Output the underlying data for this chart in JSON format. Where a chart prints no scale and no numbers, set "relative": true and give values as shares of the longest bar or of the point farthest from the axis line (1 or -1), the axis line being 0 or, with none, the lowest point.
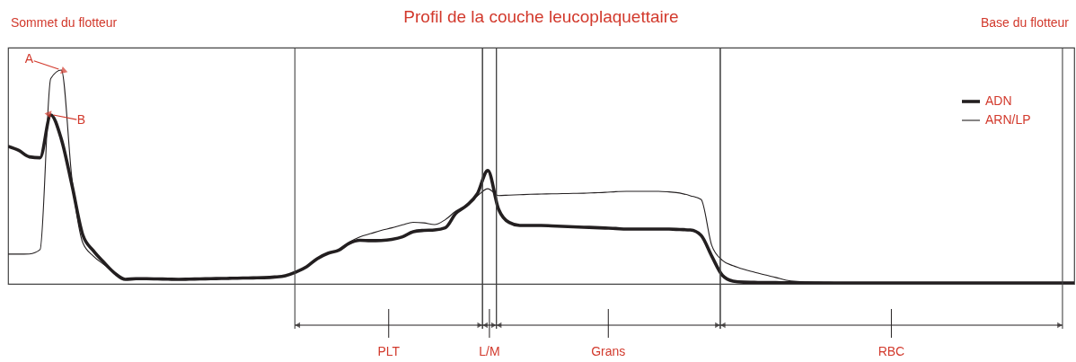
{
  "chart_data": {
    "type": "line",
    "title": "Profil de la couche leucoplaquettaire",
    "relative": true,
    "legend": "top right",
    "categories": [
      null,
      null,
      null,
      null,
      null,
      null,
      null,
      null,
      null,
      null,
      null,
      null,
      null,
      null,
      null,
      null,
      null,
      null,
      null,
      null,
      null,
      null,
      null,
      null,
      null,
      null,
      null,
      null,
      null,
      null,
      null,
      null,
      null,
      null,
      null,
      null,
      null,
      null,
      null,
      null,
      null,
      null,
      null,
      null,
      null,
      null,
      null,
      null,
      null,
      null,
      null,
      null,
      null,
      null,
      null,
      null,
      null,
      null,
      null,
      null,
      null,
      null,
      null,
      null,
      null,
      null,
      null,
      null,
      null,
      null,
      null,
      null,
      null,
      null,
      null,
      null,
      null,
      null,
      null,
      null,
      null,
      null,
      null,
      null,
      null,
      null,
      null,
      null,
      null,
      null,
      null,
      null,
      null,
      null,
      null,
      null,
      null,
      null,
      null,
      null,
      null
    ],
    "series": [
      {
        "name": "ADN",
        "color": "#231f20",
        "values": [
          0.643,
          0.624,
          0.594,
          0.59,
          0.79,
          0.676,
          0.46,
          0.23,
          0.155,
          0.1,
          0.05,
          0.021,
          0.024,
          0.024,
          0.023,
          0.022,
          0.021,
          0.022,
          0.023,
          0.024,
          0.025,
          0.026,
          0.027,
          0.028,
          0.029,
          0.032,
          0.038,
          0.055,
          0.08,
          0.118,
          0.143,
          0.157,
          0.19,
          0.204,
          0.202,
          0.203,
          0.208,
          0.22,
          0.244,
          0.25,
          0.252,
          0.262,
          0.33,
          0.366,
          0.42,
          0.53,
          0.35,
          0.287,
          0.273,
          0.273,
          0.273,
          0.271,
          0.269,
          0.267,
          0.265,
          0.263,
          0.261,
          0.259,
          0.256,
          0.256,
          0.256,
          0.256,
          0.256,
          0.254,
          0.252,
          0.227,
          0.13,
          0.04,
          0.013,
          0.008,
          0.007,
          0.006,
          0.006,
          0.005,
          0.005,
          0.004,
          0.004,
          0.004,
          0.004,
          0.004,
          0.004,
          0.004,
          0.004,
          0.004,
          0.004,
          0.004,
          0.004,
          0.004,
          0.004,
          0.004,
          0.004,
          0.004,
          0.004,
          0.004,
          0.004,
          0.004,
          0.004,
          0.004,
          0.004,
          0.004,
          0.004
        ]
      },
      {
        "name": "ARN/LP",
        "color": "#231f20",
        "values": [
          0.139,
          0.139,
          0.14,
          0.16,
          0.96,
          1,
          0.487,
          0.193,
          0.13,
          0.09,
          0.05,
          0.021,
          0.024,
          0.024,
          0.023,
          0.022,
          0.021,
          0.022,
          0.023,
          0.024,
          0.025,
          0.026,
          0.027,
          0.028,
          0.029,
          0.032,
          0.038,
          0.055,
          0.08,
          0.118,
          0.143,
          0.157,
          0.195,
          0.22,
          0.235,
          0.25,
          0.262,
          0.276,
          0.288,
          0.285,
          0.277,
          0.3,
          0.34,
          0.366,
          0.41,
          0.445,
          0.413,
          0.415,
          0.417,
          0.419,
          0.42,
          0.421,
          0.422,
          0.423,
          0.424,
          0.426,
          0.428,
          0.431,
          0.433,
          0.433,
          0.433,
          0.433,
          0.43,
          0.425,
          0.412,
          0.395,
          0.18,
          0.11,
          0.085,
          0.068,
          0.055,
          0.042,
          0.03,
          0.017,
          0.011,
          0.009,
          0.008,
          0.007,
          0.006,
          0.005,
          0.004,
          0.004,
          0.004,
          0.004,
          0.004,
          0.004,
          0.004,
          0.004,
          0.004,
          0.004,
          0.004,
          0.004,
          0.004,
          0.004,
          0.004,
          0.004,
          0.004,
          0.004,
          0.004,
          0.004,
          0.004
        ]
      }
    ],
    "annotations": [
      "Sommet du flotteur",
      "Base du flotteur",
      "A",
      "B",
      "PLT",
      "L/M",
      "Grans",
      "RBC"
    ]
  }
}
